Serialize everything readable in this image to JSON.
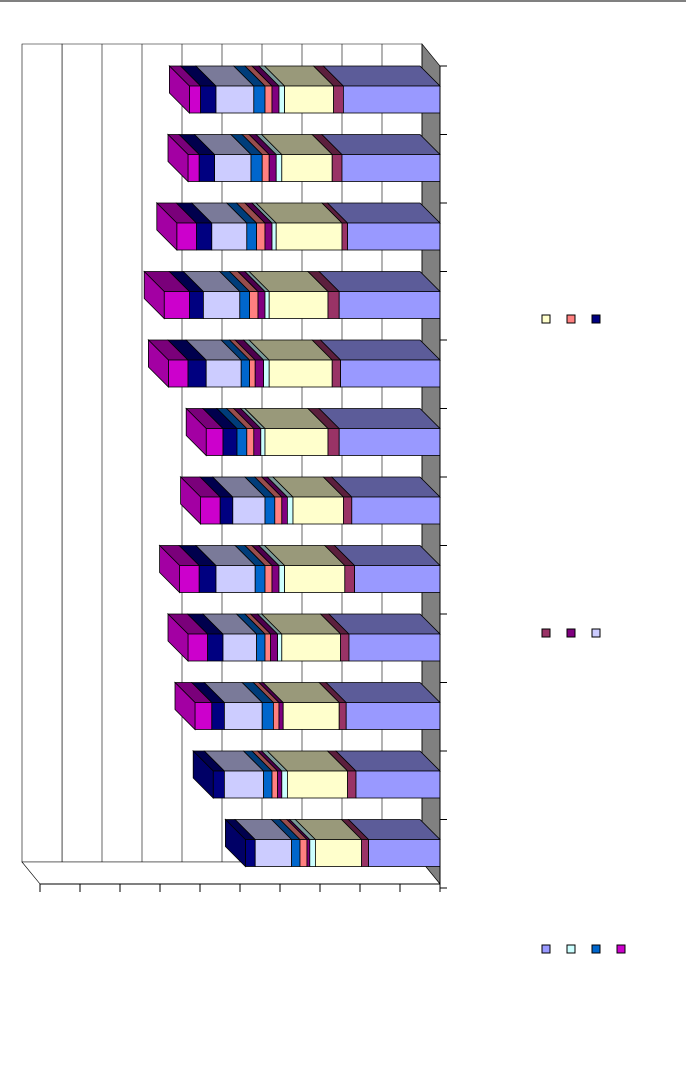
{
  "chart_data": {
    "type": "bar",
    "orientation": "horizontal",
    "stacked": true,
    "three_d": true,
    "title": "",
    "xlabel": "",
    "ylabel": "",
    "grid": true,
    "legend_placement": "right",
    "categories": [
      "",
      "",
      "",
      "",
      "",
      "",
      "",
      "",
      "",
      "",
      "",
      ""
    ],
    "series": [
      {
        "color": "#CC00CC",
        "values": [
          0,
          0,
          0,
          0,
          0,
          0,
          0,
          0,
          0,
          0,
          0,
          0
        ]
      },
      {
        "color": "#CC00CC",
        "values": [
          0.4,
          0.4,
          0.7,
          0.9,
          0.7,
          0.6,
          0.7,
          0.7,
          0.7,
          0.6,
          0,
          0
        ]
      },
      {
        "color": "#000080",
        "values": [
          0.55,
          0.55,
          0.55,
          0.5,
          0.65,
          0.5,
          0.45,
          0.6,
          0.55,
          0.45,
          0.4,
          0.35
        ]
      },
      {
        "color": "#CCCCFF",
        "values": [
          1.35,
          1.3,
          1.25,
          1.3,
          1.25,
          0,
          1.15,
          1.4,
          1.2,
          1.35,
          1.4,
          1.3
        ]
      },
      {
        "color": "#0066CC",
        "values": [
          0.4,
          0.4,
          0.35,
          0.35,
          0.3,
          0.35,
          0.35,
          0.35,
          0.3,
          0.4,
          0.3,
          0.3
        ]
      },
      {
        "color": "#FF8080",
        "values": [
          0.25,
          0.25,
          0.3,
          0.3,
          0.2,
          0.25,
          0.25,
          0.25,
          0.2,
          0.2,
          0.2,
          0.25
        ]
      },
      {
        "color": "#800080",
        "values": [
          0.25,
          0.25,
          0.25,
          0.25,
          0.3,
          0.25,
          0.2,
          0.25,
          0.25,
          0.15,
          0.15,
          0.1
        ]
      },
      {
        "color": "#CCFFFF",
        "values": [
          0.2,
          0.2,
          0.15,
          0.15,
          0.2,
          0.15,
          0.2,
          0.2,
          0.15,
          0,
          0.2,
          0.2
        ]
      },
      {
        "color": "#FFFFCC",
        "values": [
          1.75,
          1.8,
          2.35,
          2.1,
          2.25,
          2.25,
          1.8,
          2.15,
          2.1,
          2.0,
          2.15,
          1.65
        ]
      },
      {
        "color": "#993366",
        "values": [
          0.35,
          0.35,
          0.2,
          0.4,
          0.3,
          0.4,
          0.3,
          0.35,
          0.3,
          0.25,
          0.3,
          0.25
        ]
      },
      {
        "color": "#9999FF",
        "values": [
          3.45,
          3.5,
          3.3,
          3.6,
          3.55,
          3.6,
          3.15,
          3.05,
          3.25,
          3.35,
          3.0,
          2.55
        ]
      }
    ],
    "legend": [
      {
        "color": "#FFFFCC"
      },
      {
        "color": "#FF8080"
      },
      {
        "color": "#000080"
      },
      {
        "color": "#993366"
      },
      {
        "color": "#800080"
      },
      {
        "color": "#CCCCFF"
      },
      {
        "color": "#9999FF"
      },
      {
        "color": "#CCFFFF"
      },
      {
        "color": "#0066CC"
      },
      {
        "color": "#CC00CC"
      }
    ]
  }
}
